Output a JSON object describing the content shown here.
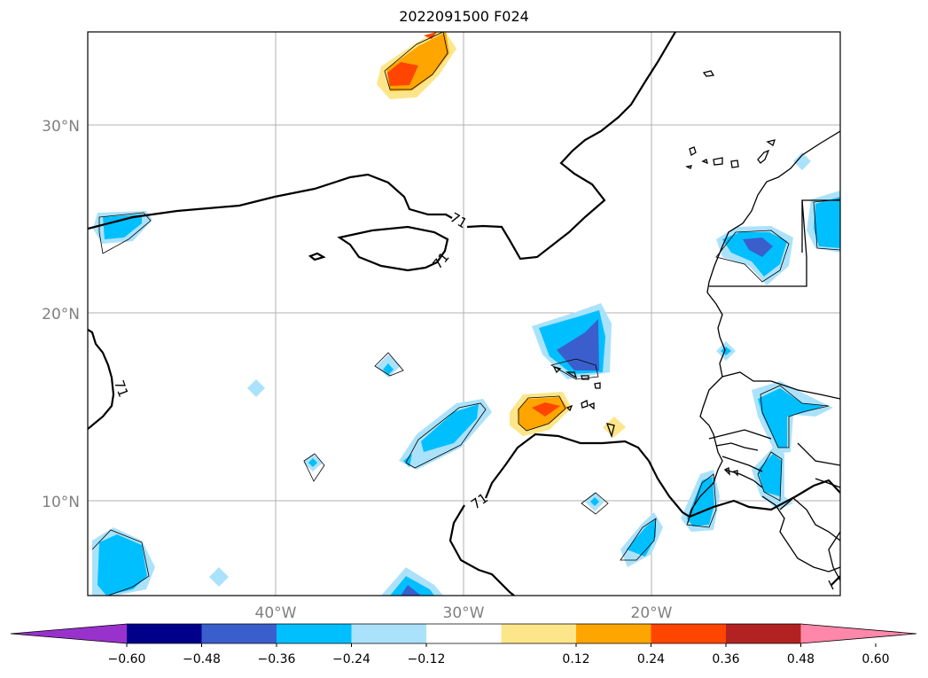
{
  "title": "2022091500 F024",
  "map": {
    "lat_labels": [
      "30°N",
      "20°N",
      "10°N"
    ],
    "lon_labels": [
      "40°W",
      "30°W",
      "20°W"
    ],
    "contour_value_label": "71",
    "gridline_color": "#b0b0b0"
  },
  "colorbar": {
    "ticks": [
      "−0.60",
      "−0.48",
      "−0.36",
      "−0.24",
      "−0.12",
      "0.12",
      "0.24",
      "0.36",
      "0.48",
      "0.60"
    ],
    "colors": [
      "#9932cc",
      "#00008b",
      "#3a5fcd",
      "#00bfff",
      "#abe2fb",
      "#ffffff",
      "#fde68a",
      "#ffa500",
      "#ff4500",
      "#b22222",
      "#ff88aa"
    ]
  }
}
